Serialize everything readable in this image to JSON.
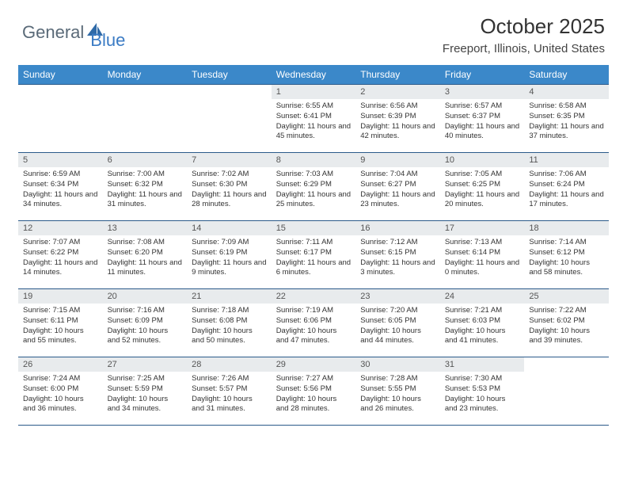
{
  "logo": {
    "text1": "General",
    "text2": "Blue"
  },
  "title": "October 2025",
  "location": "Freeport, Illinois, United States",
  "colors": {
    "header_bg": "#3b88c9",
    "header_text": "#ffffff",
    "daynum_bg": "#e8ebed",
    "border": "#2b5a8a",
    "logo_gray": "#5a6a78",
    "logo_blue": "#3b7bc4"
  },
  "weekdays": [
    "Sunday",
    "Monday",
    "Tuesday",
    "Wednesday",
    "Thursday",
    "Friday",
    "Saturday"
  ],
  "weeks": [
    [
      {
        "n": "",
        "sr": "",
        "ss": "",
        "dl": ""
      },
      {
        "n": "",
        "sr": "",
        "ss": "",
        "dl": ""
      },
      {
        "n": "",
        "sr": "",
        "ss": "",
        "dl": ""
      },
      {
        "n": "1",
        "sr": "6:55 AM",
        "ss": "6:41 PM",
        "dl": "11 hours and 45 minutes."
      },
      {
        "n": "2",
        "sr": "6:56 AM",
        "ss": "6:39 PM",
        "dl": "11 hours and 42 minutes."
      },
      {
        "n": "3",
        "sr": "6:57 AM",
        "ss": "6:37 PM",
        "dl": "11 hours and 40 minutes."
      },
      {
        "n": "4",
        "sr": "6:58 AM",
        "ss": "6:35 PM",
        "dl": "11 hours and 37 minutes."
      }
    ],
    [
      {
        "n": "5",
        "sr": "6:59 AM",
        "ss": "6:34 PM",
        "dl": "11 hours and 34 minutes."
      },
      {
        "n": "6",
        "sr": "7:00 AM",
        "ss": "6:32 PM",
        "dl": "11 hours and 31 minutes."
      },
      {
        "n": "7",
        "sr": "7:02 AM",
        "ss": "6:30 PM",
        "dl": "11 hours and 28 minutes."
      },
      {
        "n": "8",
        "sr": "7:03 AM",
        "ss": "6:29 PM",
        "dl": "11 hours and 25 minutes."
      },
      {
        "n": "9",
        "sr": "7:04 AM",
        "ss": "6:27 PM",
        "dl": "11 hours and 23 minutes."
      },
      {
        "n": "10",
        "sr": "7:05 AM",
        "ss": "6:25 PM",
        "dl": "11 hours and 20 minutes."
      },
      {
        "n": "11",
        "sr": "7:06 AM",
        "ss": "6:24 PM",
        "dl": "11 hours and 17 minutes."
      }
    ],
    [
      {
        "n": "12",
        "sr": "7:07 AM",
        "ss": "6:22 PM",
        "dl": "11 hours and 14 minutes."
      },
      {
        "n": "13",
        "sr": "7:08 AM",
        "ss": "6:20 PM",
        "dl": "11 hours and 11 minutes."
      },
      {
        "n": "14",
        "sr": "7:09 AM",
        "ss": "6:19 PM",
        "dl": "11 hours and 9 minutes."
      },
      {
        "n": "15",
        "sr": "7:11 AM",
        "ss": "6:17 PM",
        "dl": "11 hours and 6 minutes."
      },
      {
        "n": "16",
        "sr": "7:12 AM",
        "ss": "6:15 PM",
        "dl": "11 hours and 3 minutes."
      },
      {
        "n": "17",
        "sr": "7:13 AM",
        "ss": "6:14 PM",
        "dl": "11 hours and 0 minutes."
      },
      {
        "n": "18",
        "sr": "7:14 AM",
        "ss": "6:12 PM",
        "dl": "10 hours and 58 minutes."
      }
    ],
    [
      {
        "n": "19",
        "sr": "7:15 AM",
        "ss": "6:11 PM",
        "dl": "10 hours and 55 minutes."
      },
      {
        "n": "20",
        "sr": "7:16 AM",
        "ss": "6:09 PM",
        "dl": "10 hours and 52 minutes."
      },
      {
        "n": "21",
        "sr": "7:18 AM",
        "ss": "6:08 PM",
        "dl": "10 hours and 50 minutes."
      },
      {
        "n": "22",
        "sr": "7:19 AM",
        "ss": "6:06 PM",
        "dl": "10 hours and 47 minutes."
      },
      {
        "n": "23",
        "sr": "7:20 AM",
        "ss": "6:05 PM",
        "dl": "10 hours and 44 minutes."
      },
      {
        "n": "24",
        "sr": "7:21 AM",
        "ss": "6:03 PM",
        "dl": "10 hours and 41 minutes."
      },
      {
        "n": "25",
        "sr": "7:22 AM",
        "ss": "6:02 PM",
        "dl": "10 hours and 39 minutes."
      }
    ],
    [
      {
        "n": "26",
        "sr": "7:24 AM",
        "ss": "6:00 PM",
        "dl": "10 hours and 36 minutes."
      },
      {
        "n": "27",
        "sr": "7:25 AM",
        "ss": "5:59 PM",
        "dl": "10 hours and 34 minutes."
      },
      {
        "n": "28",
        "sr": "7:26 AM",
        "ss": "5:57 PM",
        "dl": "10 hours and 31 minutes."
      },
      {
        "n": "29",
        "sr": "7:27 AM",
        "ss": "5:56 PM",
        "dl": "10 hours and 28 minutes."
      },
      {
        "n": "30",
        "sr": "7:28 AM",
        "ss": "5:55 PM",
        "dl": "10 hours and 26 minutes."
      },
      {
        "n": "31",
        "sr": "7:30 AM",
        "ss": "5:53 PM",
        "dl": "10 hours and 23 minutes."
      },
      {
        "n": "",
        "sr": "",
        "ss": "",
        "dl": ""
      }
    ]
  ]
}
